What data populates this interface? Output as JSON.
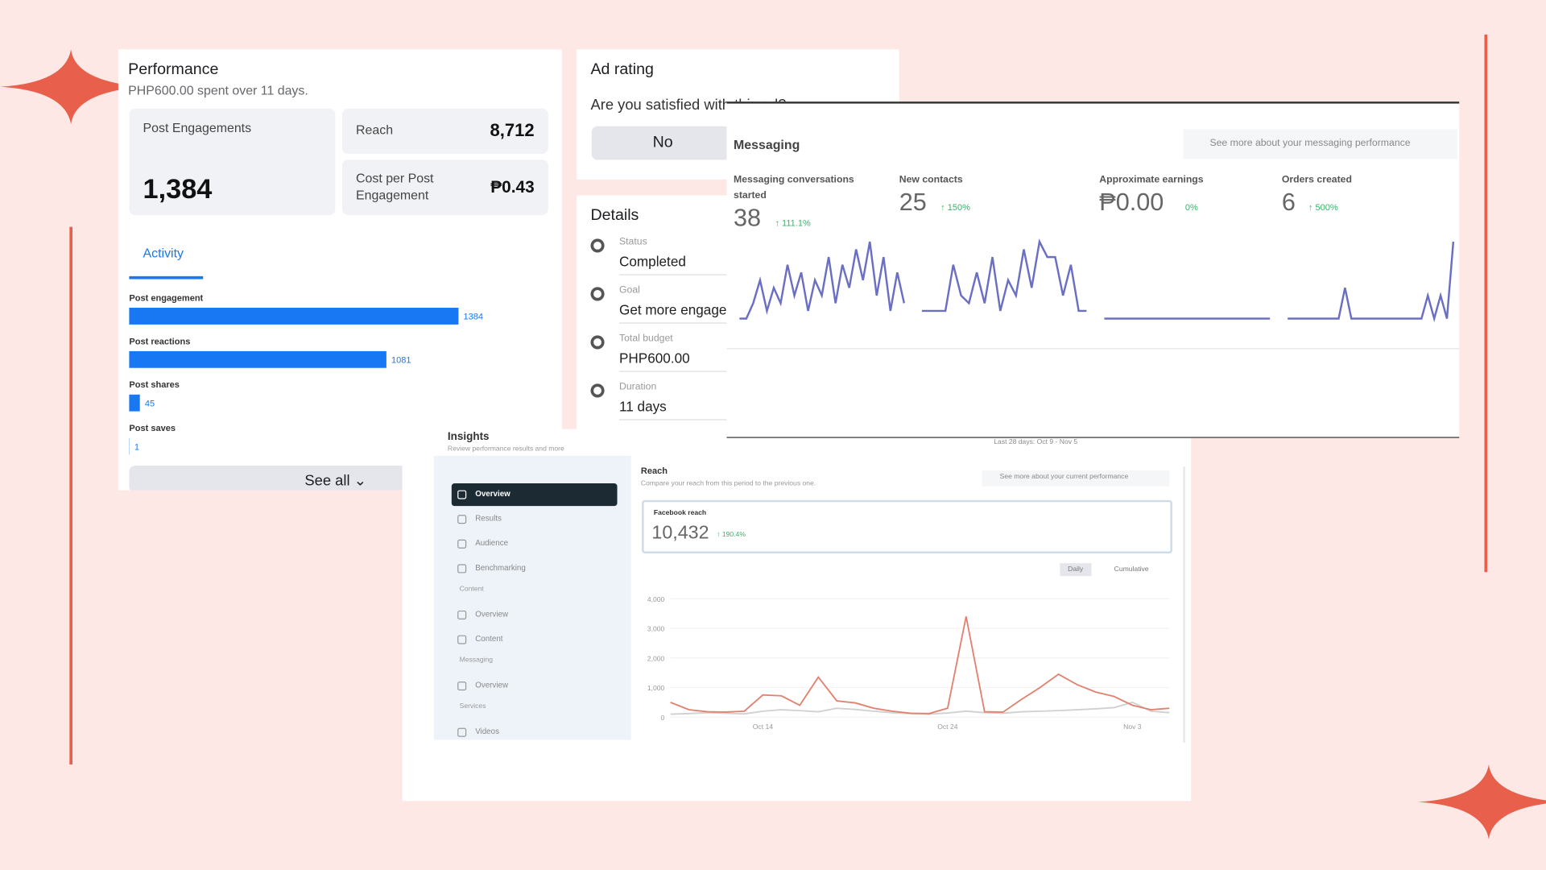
{
  "performance": {
    "title": "Performance",
    "spent": "PHP600.00 spent over 11 days.",
    "metrics": [
      {
        "label": "Post Engagements",
        "value": "1,384"
      },
      {
        "label": "Reach",
        "value": "8,712"
      },
      {
        "label": "Cost per Post Engagement",
        "value": "₱0.43"
      }
    ],
    "tab": "Activity",
    "activity": [
      {
        "label": "Post engagement",
        "value": 1384
      },
      {
        "label": "Post reactions",
        "value": 1081
      },
      {
        "label": "Post shares",
        "value": 45
      },
      {
        "label": "Post saves",
        "value": 1
      }
    ],
    "button": "See all ⌄"
  },
  "ad_rating": {
    "title": "Ad rating",
    "question": "Are you satisfied with this ad?",
    "answer": "No"
  },
  "details": {
    "title": "Details",
    "items": [
      {
        "label": "Status",
        "value": "Completed"
      },
      {
        "label": "Goal",
        "value": "Get more engagement"
      },
      {
        "label": "Total budget",
        "value": "PHP600.00"
      },
      {
        "label": "Duration",
        "value": "11 days"
      }
    ]
  },
  "messaging": {
    "title": "Messaging",
    "link": "See more about your messaging performance",
    "metrics": [
      {
        "label": "Messaging conversations started",
        "value": "38",
        "change": "↑ 111.1%",
        "trend": [
          0,
          0,
          2,
          5,
          1,
          4,
          2,
          7,
          3,
          6,
          1,
          5,
          3,
          8,
          2,
          7,
          4,
          9,
          5,
          10,
          3,
          8,
          1,
          6,
          2
        ]
      },
      {
        "label": "New contacts",
        "value": "25",
        "change": "↑ 150%",
        "trend": [
          1,
          1,
          1,
          1,
          7,
          3,
          2,
          6,
          2,
          8,
          1,
          5,
          3,
          9,
          4,
          10,
          8,
          8,
          3,
          7,
          1,
          1
        ]
      },
      {
        "label": "Approximate earnings",
        "value": "₱0.00",
        "change": "0%",
        "trend": [
          0,
          0,
          0,
          0,
          0,
          0,
          0,
          0,
          0,
          0
        ]
      },
      {
        "label": "Orders created",
        "value": "6",
        "change": "↑ 500%",
        "trend": [
          0,
          0,
          0,
          0,
          0,
          0,
          0,
          0,
          0,
          4,
          0,
          0,
          0,
          0,
          0,
          0,
          0,
          0,
          0,
          0,
          0,
          0,
          3,
          0,
          3,
          0,
          10
        ]
      }
    ]
  },
  "insights": {
    "title": "Insights",
    "subtitle": "Review performance results and more",
    "date_range": "Last 28 days: Oct 9 - Nov 5",
    "nav": [
      {
        "label": "Overview"
      },
      {
        "label": "Results"
      },
      {
        "label": "Audience"
      },
      {
        "label": "Benchmarking"
      },
      {
        "section": "Content"
      },
      {
        "label": "Overview"
      },
      {
        "label": "Content"
      },
      {
        "section": "Messaging"
      },
      {
        "label": "Overview"
      },
      {
        "section": "Services"
      },
      {
        "label": "Videos"
      }
    ],
    "reach_title": "Reach",
    "reach_subtitle": "Compare your reach from this period to the previous one.",
    "reach_link": "See more about your current performance",
    "reach_label": "Facebook reach",
    "reach_value": "10,432",
    "reach_change": "↑ 190.4%",
    "toggle": [
      "Daily",
      "Cumulative"
    ],
    "chart": {
      "ylim": [
        0,
        4000
      ],
      "yticks": [
        0,
        {
          "value": 1000,
          "label": "1,000"
        },
        {
          "value": 2000,
          "label": "2,000"
        },
        {
          "value": 3000,
          "label": "3,000"
        },
        {
          "value": 4000,
          "label": "4,000"
        }
      ],
      "categories": [
        null,
        null,
        null,
        null,
        null,
        "Oct 14",
        null,
        null,
        null,
        null,
        null,
        null,
        null,
        null,
        null,
        "Oct 24",
        null,
        null,
        null,
        null,
        null,
        null,
        null,
        null,
        null,
        "Nov 3",
        null,
        null
      ],
      "series": [
        {
          "color": "#e0826f",
          "values": [
            500,
            250,
            180,
            170,
            200,
            750,
            720,
            400,
            1350,
            550,
            480,
            300,
            200,
            130,
            120,
            300,
            3400,
            180,
            170,
            600,
            1000,
            1450,
            1100,
            850,
            700,
            400,
            250,
            300
          ]
        },
        {
          "color": "#d0d0d0",
          "values": [
            100,
            120,
            150,
            130,
            110,
            200,
            250,
            220,
            180,
            300,
            260,
            200,
            150,
            120,
            100,
            140,
            200,
            150,
            130,
            180,
            200,
            220,
            250,
            280,
            320,
            500,
            200,
            150
          ]
        }
      ]
    }
  }
}
